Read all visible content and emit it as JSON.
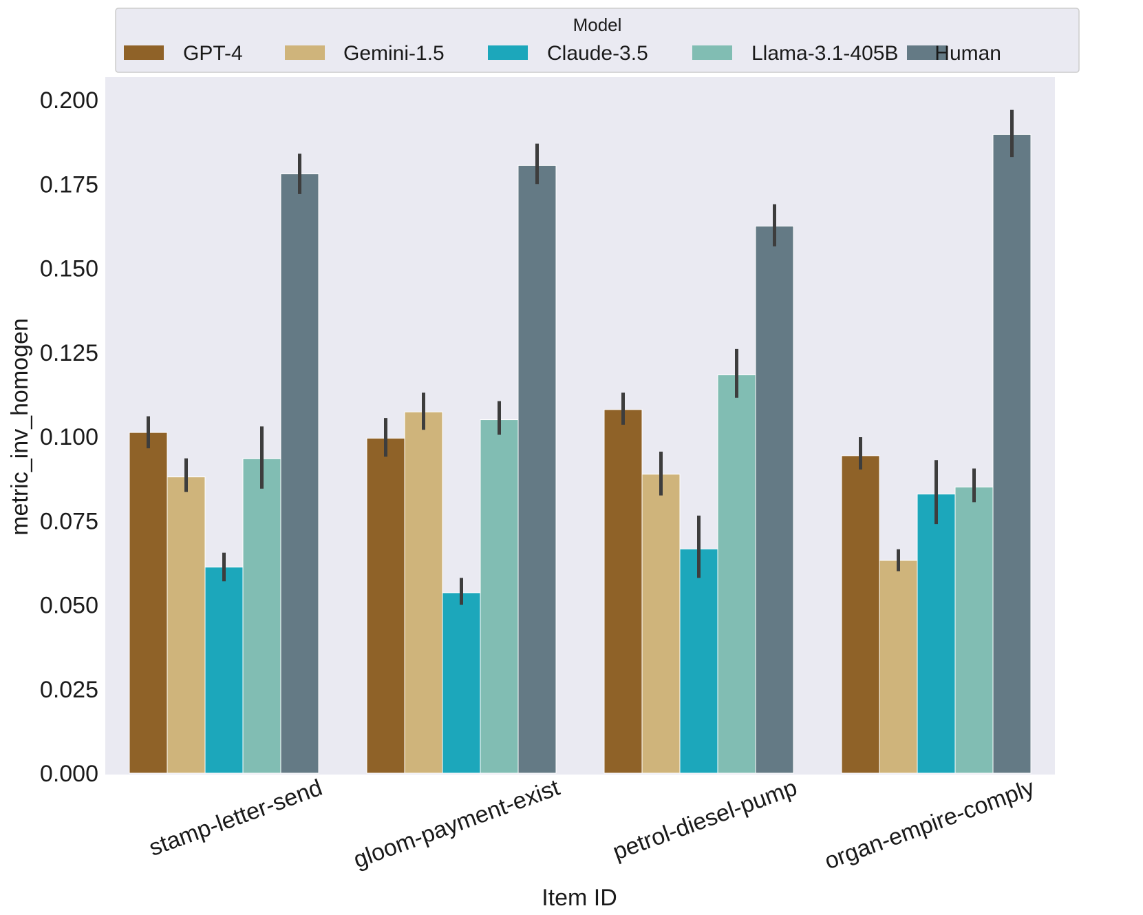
{
  "chart_data": {
    "type": "bar",
    "title": "",
    "xlabel": "Item ID",
    "ylabel": "metric_inv_homogen",
    "ylim": [
      0,
      0.2
    ],
    "yticks": [
      "0.000",
      "0.025",
      "0.050",
      "0.075",
      "0.100",
      "0.125",
      "0.150",
      "0.175",
      "0.200"
    ],
    "grid": false,
    "legend_title": "Model",
    "legend_position": "top",
    "categories": [
      "stamp-letter-send",
      "gloom-payment-exist",
      "petrol-diesel-pump",
      "organ-empire-comply"
    ],
    "series": [
      {
        "name": "GPT-4",
        "color": "#8f6228",
        "values": [
          0.1012,
          0.0995,
          0.108,
          0.0943
        ],
        "err_low": [
          0.0965,
          0.094,
          0.1035,
          0.0902
        ],
        "err_high": [
          0.106,
          0.1055,
          0.113,
          0.0998
        ]
      },
      {
        "name": "Gemini-1.5",
        "color": "#cfb47b",
        "values": [
          0.088,
          0.1073,
          0.0888,
          0.0632
        ],
        "err_low": [
          0.0835,
          0.102,
          0.0825,
          0.06
        ],
        "err_high": [
          0.0935,
          0.113,
          0.0955,
          0.0665
        ]
      },
      {
        "name": "Claude-3.5",
        "color": "#1ca7bb",
        "values": [
          0.0612,
          0.0536,
          0.0666,
          0.0829
        ],
        "err_low": [
          0.057,
          0.05,
          0.058,
          0.074
        ],
        "err_high": [
          0.0655,
          0.058,
          0.0765,
          0.093
        ]
      },
      {
        "name": "Llama-3.1-405B",
        "color": "#81bdb3",
        "values": [
          0.0934,
          0.105,
          0.1183,
          0.085
        ],
        "err_low": [
          0.0845,
          0.1005,
          0.1115,
          0.0805
        ],
        "err_high": [
          0.103,
          0.1105,
          0.126,
          0.0905
        ]
      },
      {
        "name": "Human",
        "color": "#647a85",
        "values": [
          0.178,
          0.1805,
          0.1625,
          0.1897
        ],
        "err_low": [
          0.172,
          0.175,
          0.1565,
          0.183
        ],
        "err_high": [
          0.184,
          0.187,
          0.169,
          0.197
        ]
      }
    ]
  }
}
